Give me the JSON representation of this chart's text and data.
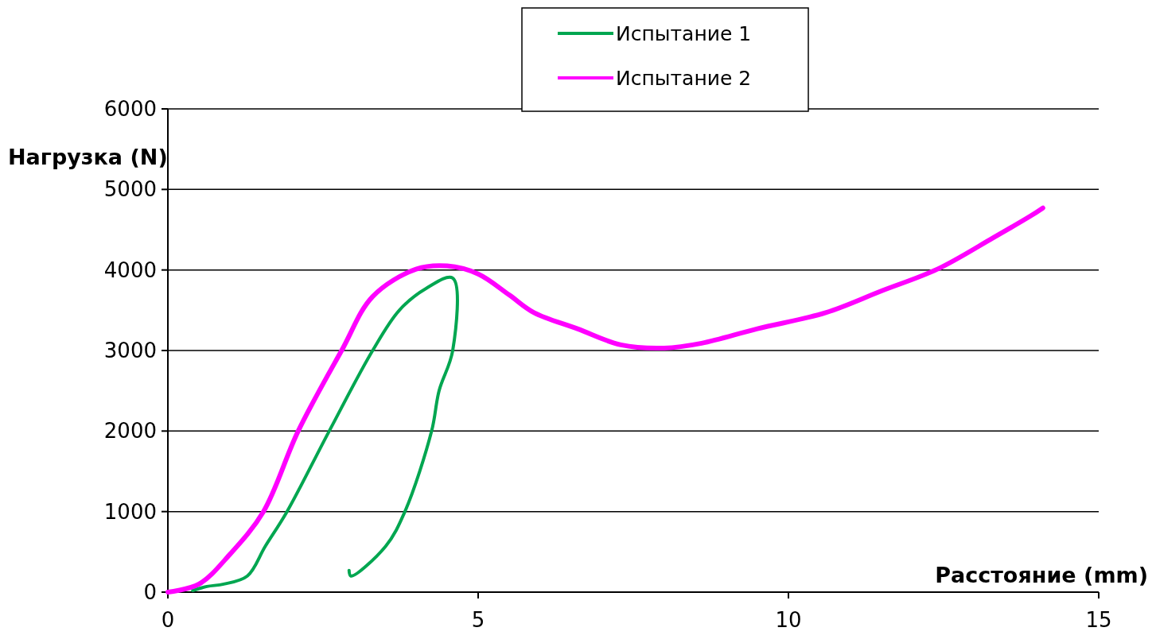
{
  "chart_data": {
    "type": "line",
    "xlabel": "Расстояние (mm)",
    "ylabel": "Нагрузка (N)",
    "xlim": [
      0,
      15
    ],
    "xticks": [
      0,
      5,
      10,
      15
    ],
    "ylim": [
      0,
      6000
    ],
    "yticks": [
      0,
      1000,
      2000,
      3000,
      4000,
      5000,
      6000
    ],
    "grid": "y",
    "legend": "top",
    "marker": "none",
    "line_style": "solid",
    "series": [
      {
        "name": "Испытание 1",
        "color": "#00a650",
        "x": [
          0.4,
          0.63,
          0.9,
          1.28,
          1.57,
          1.92,
          2.6,
          3.3,
          3.73,
          4.16,
          4.59,
          4.59,
          4.37,
          4.25,
          3.82,
          3.51,
          2.95,
          2.92
        ],
        "values": [
          20,
          70,
          100,
          200,
          570,
          1000,
          2000,
          3000,
          3500,
          3770,
          3900,
          3000,
          2500,
          2000,
          1000,
          570,
          200,
          270
        ]
      },
      {
        "name": "Испытание 2",
        "color": "#ff00ff",
        "x": [
          0,
          0.5,
          1.0,
          1.54,
          2.1,
          2.8,
          3.3,
          4.0,
          4.5,
          5.0,
          5.5,
          5.9,
          6.6,
          7.3,
          8.0,
          8.6,
          9.5,
          10.6,
          11.5,
          12.4,
          13.3,
          13.9,
          14.1
        ],
        "values": [
          0,
          100,
          470,
          1000,
          2000,
          3000,
          3670,
          4010,
          4050,
          3950,
          3690,
          3470,
          3270,
          3070,
          3030,
          3090,
          3270,
          3470,
          3740,
          4010,
          4400,
          4670,
          4770
        ]
      }
    ]
  }
}
